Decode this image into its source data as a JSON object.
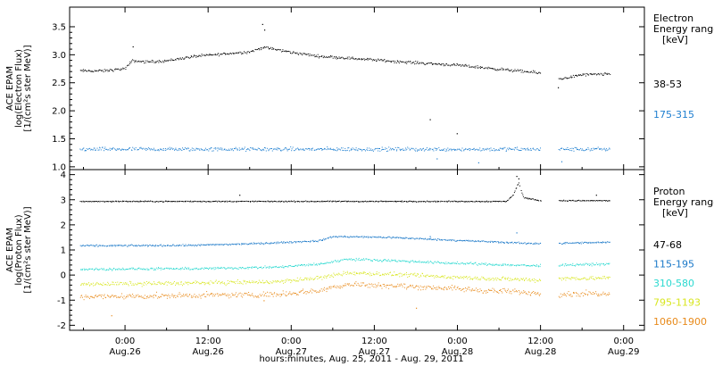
{
  "chart_data": [
    {
      "type": "scatter",
      "panel": "electron",
      "ylabel_lines": [
        "ACE EPAM",
        "log(Electron Flux)",
        "[1/(cm²s ster MeV)]"
      ],
      "ylim": [
        0.95,
        3.85
      ],
      "yticks": [
        {
          "v": 1.0,
          "label": "1.0"
        },
        {
          "v": 1.5,
          "label": "1.5"
        },
        {
          "v": 2.0,
          "label": "2.0"
        },
        {
          "v": 2.5,
          "label": "2.5"
        },
        {
          "v": 3.0,
          "label": "3.0"
        },
        {
          "v": 3.5,
          "label": "3.5"
        }
      ],
      "legend_title": [
        "Electron",
        "Energy ranges",
        "[keV]"
      ],
      "data_gap_hours": [
        60.0,
        62.5
      ],
      "series": [
        {
          "name": "38-53",
          "color": "#000000",
          "noise": 0.035,
          "points": [
            [
              -6.5,
              2.72
            ],
            [
              -3,
              2.72
            ],
            [
              0,
              2.76
            ],
            [
              1,
              2.9
            ],
            [
              3,
              2.88
            ],
            [
              6,
              2.9
            ],
            [
              10,
              2.98
            ],
            [
              14,
              3.02
            ],
            [
              18,
              3.06
            ],
            [
              20,
              3.14
            ],
            [
              24,
              3.05
            ],
            [
              28,
              2.98
            ],
            [
              32,
              2.95
            ],
            [
              40,
              2.88
            ],
            [
              48,
              2.82
            ],
            [
              54,
              2.75
            ],
            [
              60,
              2.68
            ],
            [
              62.5,
              2.57
            ],
            [
              66,
              2.65
            ],
            [
              70,
              2.66
            ]
          ],
          "spikes": [
            [
              19.8,
              3.55
            ],
            [
              20.1,
              3.45
            ],
            [
              1.1,
              3.15
            ],
            [
              44,
              1.85
            ],
            [
              47.9,
              1.6
            ],
            [
              62.5,
              2.42
            ]
          ]
        },
        {
          "name": "175-315",
          "color": "#1f7fd0",
          "noise": 0.05,
          "points": [
            [
              -6.5,
              1.32
            ],
            [
              70,
              1.32
            ]
          ],
          "spikes": [
            [
              45,
              1.15
            ],
            [
              51,
              1.08
            ],
            [
              63,
              1.1
            ]
          ]
        }
      ]
    },
    {
      "type": "scatter",
      "panel": "proton",
      "ylabel_lines": [
        "ACE EPAM",
        "log(Proton Flux)",
        "[1/(cm²s ster MeV)]"
      ],
      "ylim": [
        -2.2,
        4.2
      ],
      "yticks": [
        {
          "v": -2,
          "label": "-2"
        },
        {
          "v": -1,
          "label": "-1"
        },
        {
          "v": 0,
          "label": "0"
        },
        {
          "v": 1,
          "label": "1"
        },
        {
          "v": 2,
          "label": "2"
        },
        {
          "v": 3,
          "label": "3"
        },
        {
          "v": 4,
          "label": "4"
        }
      ],
      "legend_title": [
        "Proton",
        "Energy ranges",
        "[keV]"
      ],
      "data_gap_hours": [
        60.0,
        62.5
      ],
      "series": [
        {
          "name": "47-68",
          "color": "#000000",
          "noise": 0.03,
          "points": [
            [
              -6.5,
              2.95
            ],
            [
              55,
              2.95
            ],
            [
              56,
              3.2
            ],
            [
              56.8,
              3.7
            ],
            [
              57.5,
              3.1
            ],
            [
              60,
              2.98
            ],
            [
              62.5,
              2.98
            ],
            [
              70,
              2.98
            ]
          ],
          "spikes": [
            [
              16.5,
              3.2
            ],
            [
              56.5,
              3.95
            ],
            [
              56.8,
              3.85
            ],
            [
              68,
              3.2
            ]
          ]
        },
        {
          "name": "115-195",
          "color": "#1a78c8",
          "noise": 0.05,
          "points": [
            [
              -6.5,
              1.18
            ],
            [
              10,
              1.2
            ],
            [
              20,
              1.28
            ],
            [
              28,
              1.38
            ],
            [
              30,
              1.55
            ],
            [
              38,
              1.52
            ],
            [
              46,
              1.42
            ],
            [
              52,
              1.35
            ],
            [
              58,
              1.28
            ],
            [
              62.5,
              1.28
            ],
            [
              70,
              1.32
            ]
          ],
          "spikes": [
            [
              44,
              1.55
            ],
            [
              56.5,
              1.7
            ]
          ]
        },
        {
          "name": "310-580",
          "color": "#2ad9d0",
          "noise": 0.07,
          "points": [
            [
              -6.5,
              0.25
            ],
            [
              10,
              0.27
            ],
            [
              22,
              0.33
            ],
            [
              28,
              0.45
            ],
            [
              32,
              0.65
            ],
            [
              38,
              0.6
            ],
            [
              46,
              0.5
            ],
            [
              52,
              0.45
            ],
            [
              60,
              0.38
            ],
            [
              62.5,
              0.42
            ],
            [
              70,
              0.45
            ]
          ],
          "spikes": []
        },
        {
          "name": "795-1193",
          "color": "#d8e61f",
          "noise": 0.12,
          "points": [
            [
              -6.5,
              -0.35
            ],
            [
              10,
              -0.3
            ],
            [
              22,
              -0.25
            ],
            [
              28,
              -0.1
            ],
            [
              32,
              0.1
            ],
            [
              38,
              0.05
            ],
            [
              46,
              -0.05
            ],
            [
              52,
              -0.12
            ],
            [
              60,
              -0.18
            ],
            [
              62.5,
              -0.12
            ],
            [
              70,
              -0.1
            ]
          ],
          "spikes": []
        },
        {
          "name": "1060-1900",
          "color": "#e88a1a",
          "noise": 0.16,
          "points": [
            [
              -6.5,
              -0.85
            ],
            [
              10,
              -0.8
            ],
            [
              22,
              -0.75
            ],
            [
              28,
              -0.6
            ],
            [
              32,
              -0.35
            ],
            [
              38,
              -0.4
            ],
            [
              46,
              -0.5
            ],
            [
              52,
              -0.6
            ],
            [
              60,
              -0.7
            ],
            [
              62.5,
              -0.75
            ],
            [
              70,
              -0.7
            ]
          ],
          "spikes": [
            [
              -2,
              -1.6
            ],
            [
              20,
              -1.0
            ],
            [
              42,
              -1.3
            ]
          ]
        }
      ]
    }
  ],
  "x_axis": {
    "range_hours": [
      -8,
      75
    ],
    "ticks": [
      {
        "h": 0,
        "time": "0:00",
        "date": "Aug.26"
      },
      {
        "h": 12,
        "time": "12:00",
        "date": "Aug.26"
      },
      {
        "h": 24,
        "time": "0:00",
        "date": "Aug.27"
      },
      {
        "h": 36,
        "time": "12:00",
        "date": "Aug.27"
      },
      {
        "h": 48,
        "time": "0:00",
        "date": "Aug.28"
      },
      {
        "h": 60,
        "time": "12:00",
        "date": "Aug.28"
      },
      {
        "h": 72,
        "time": "0:00",
        "date": "Aug.29"
      }
    ],
    "label": "hours:minutes, Aug. 25, 2011 - Aug. 29, 2011"
  }
}
